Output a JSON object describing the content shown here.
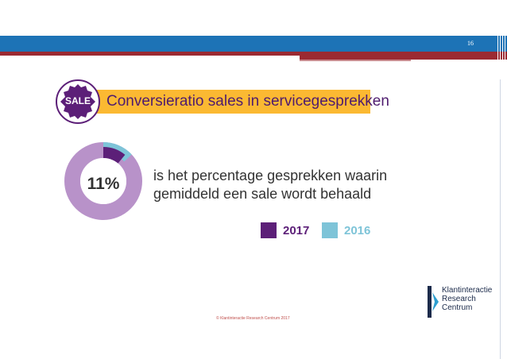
{
  "slide": {
    "page_number": "16"
  },
  "header": {
    "badge_label": "SALE",
    "title": "Conversieratio sales in servicegesprekken"
  },
  "chart_data": {
    "type": "pie",
    "subtype": "donut",
    "title": "Conversieratio sales in servicegesprekken",
    "center_label": "11%",
    "description": "is het percentage gesprekken waarin gemiddeld een sale wordt behaald",
    "series": [
      {
        "name": "2017",
        "value": 11,
        "color": "#5c1f78"
      },
      {
        "name": "2016",
        "value": 13,
        "color": "#7ec4d8"
      }
    ],
    "ring_color": "#b892c9",
    "legend_position": "bottom-right"
  },
  "footer": {
    "copyright": "© Klantinteractie Research Centrum 2017",
    "logo_lines": [
      "Klantinteractie",
      "Research",
      "Centrum"
    ]
  },
  "colors": {
    "band_blue": "#1d73b6",
    "band_red": "#9b2a32",
    "title_bar": "#fbb932",
    "badge": "#5c1f78",
    "title_text": "#4e1b6e"
  }
}
